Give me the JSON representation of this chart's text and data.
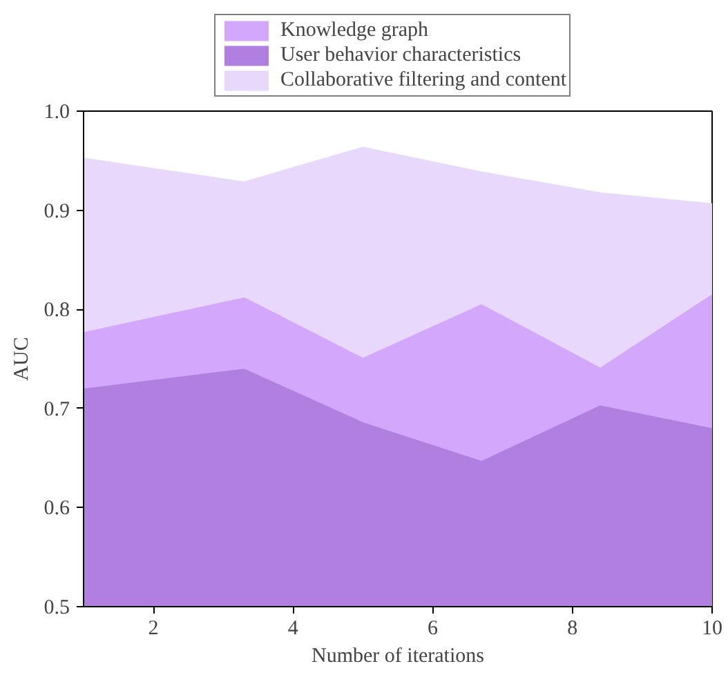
{
  "chart_data": {
    "type": "area",
    "xlabel": "Number of iterations",
    "ylabel": "AUC",
    "x": [
      1,
      3.3,
      5,
      6.7,
      8.4,
      10
    ],
    "series": [
      {
        "name": "Knowledge graph",
        "color": "#d3a8fc",
        "values": [
          0.776,
          0.811,
          0.75,
          0.804,
          0.74,
          0.814
        ]
      },
      {
        "name": "User behavior characteristics",
        "color": "#b07fe0",
        "values": [
          0.719,
          0.739,
          0.685,
          0.646,
          0.702,
          0.679
        ]
      },
      {
        "name": "Collaborative filtering and content",
        "color": "#e8d8fc",
        "values": [
          0.952,
          0.928,
          0.963,
          0.938,
          0.917,
          0.906
        ]
      }
    ],
    "xlim": [
      1,
      10
    ],
    "xticks": [
      2,
      4,
      6,
      8,
      10
    ],
    "ylim": [
      0.5,
      1.0
    ],
    "yticks": [
      0.5,
      0.6,
      0.7,
      0.8,
      0.9,
      {
        "value": 1,
        "label": "1.0"
      }
    ],
    "grid": false,
    "legend": "top"
  }
}
